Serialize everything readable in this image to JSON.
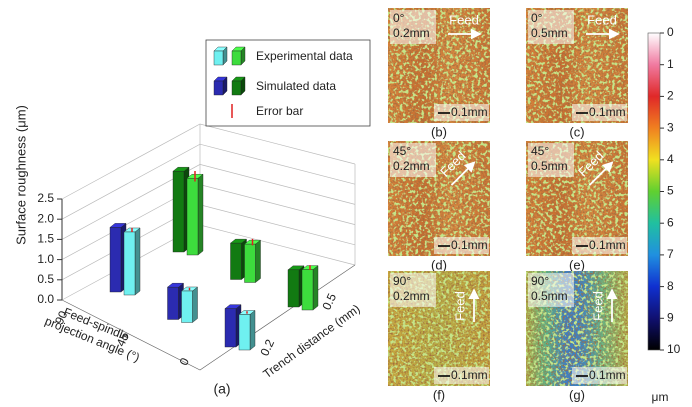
{
  "chart_data": {
    "type": "bar3d",
    "y_label": "Surface roughness (μm)",
    "x_label": [
      "Feed-spindle",
      "projection angle (°)"
    ],
    "z_label": "Trench distance (mm)",
    "x": [
      90,
      45,
      0
    ],
    "z": [
      0.2,
      0.5
    ],
    "ylim": [
      0,
      2.5
    ],
    "yticks": [
      {
        "value": 0,
        "label": "0.0"
      },
      0.5,
      {
        "value": 1,
        "label": "1.0"
      },
      1.5,
      {
        "value": 2,
        "label": "2.0"
      },
      2.5
    ],
    "grid": true,
    "series": [
      {
        "name": "Experimental data",
        "colors": [
          "#6ff0f0",
          "#3ddc3d"
        ],
        "values": [
          [
            1.56,
            0.78,
            0.88
          ],
          [
            1.9,
            0.95,
            1.0
          ]
        ],
        "errors": [
          [
            0.05,
            0.03,
            0.03
          ],
          [
            0.13,
            0.08,
            0.06
          ]
        ]
      },
      {
        "name": "Simulated data",
        "colors": [
          "#2b2bb0",
          "#127a12"
        ],
        "values": [
          [
            1.6,
            0.8,
            0.95
          ],
          [
            2.0,
            0.9,
            0.92
          ]
        ]
      }
    ],
    "error_bar": {
      "name": "Error bar",
      "color": "#e02020"
    },
    "panel_label": "(a)"
  },
  "micrographs": [
    {
      "label": "(b)",
      "angle": "0°",
      "distance": "0.2mm",
      "arrow": "Feed",
      "scale": "0.1mm"
    },
    {
      "label": "(c)",
      "angle": "0°",
      "distance": "0.5mm",
      "arrow": "Feed",
      "scale": "0.1mm"
    },
    {
      "label": "(d)",
      "angle": "45°",
      "distance": "0.2mm",
      "arrow": "Feed",
      "scale": "0.1mm"
    },
    {
      "label": "(e)",
      "angle": "45°",
      "distance": "0.5mm",
      "arrow": "Feed",
      "scale": "0.1mm"
    },
    {
      "label": "(f)",
      "angle": "90°",
      "distance": "0.2mm",
      "arrow": "Feed",
      "scale": "0.1mm"
    },
    {
      "label": "(g)",
      "angle": "90°",
      "distance": "0.5mm",
      "arrow": "Feed",
      "scale": "0.1mm"
    }
  ],
  "colorbar": {
    "lim": [
      0,
      10
    ],
    "ticks": [
      0,
      1,
      2,
      3,
      4,
      5,
      6,
      7,
      8,
      9,
      10
    ],
    "unit": "μm"
  }
}
